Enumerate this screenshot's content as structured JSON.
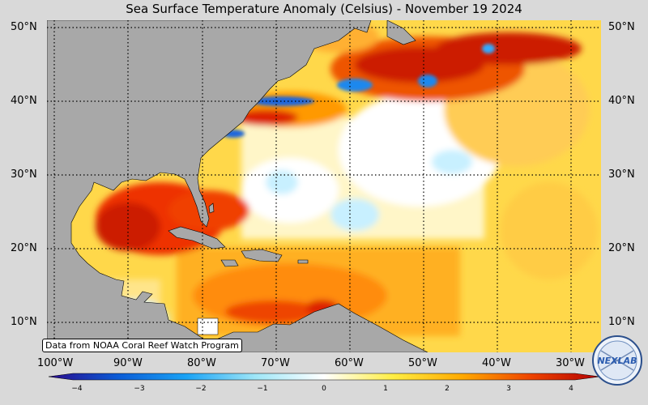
{
  "title": "Sea Surface Temperature Anomaly (Celsius) - November 19 2024",
  "credit": "Data from NOAA Coral Reef Watch Program",
  "logo_text": "NEXLAB",
  "lat_labels": [
    "50°N",
    "40°N",
    "30°N",
    "20°N",
    "10°N"
  ],
  "lat_labels_right": [
    "50°N",
    "40°N",
    "30°N",
    "20°N",
    "10°N"
  ],
  "lon_labels": [
    "100°W",
    "90°W",
    "80°W",
    "70°W",
    "60°W",
    "50°W",
    "40°W",
    "30°W"
  ],
  "colorbar": {
    "ticks": [
      "−4",
      "−3",
      "−2",
      "−1",
      "0",
      "1",
      "2",
      "3",
      "4"
    ],
    "colors": [
      "#2a0a8c",
      "#0b5bd6",
      "#1aa3f5",
      "#9ee6f7",
      "#ffffff",
      "#ffee44",
      "#ffaa00",
      "#ee4400",
      "#b30000"
    ]
  },
  "colors": {
    "land": "#a8a8a8",
    "background": "#d9d9d9"
  }
}
